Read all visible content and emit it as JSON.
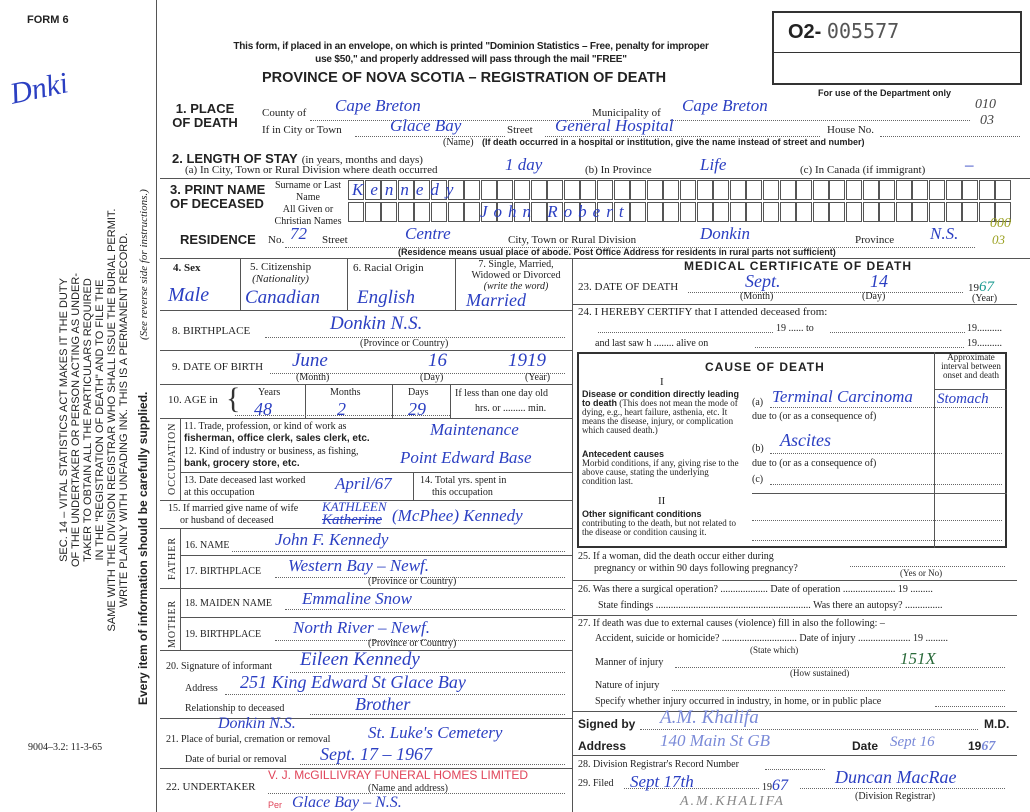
{
  "form_label": "FORM 6",
  "margin": {
    "handwritten_top": "Dnki",
    "statute_lines": [
      "SEC. 14 – VITAL STATISTICS ACT MAKES IT THE DUTY",
      "OF THE UNDERTAKER OR PERSON ACTING AS UNDER-",
      "TAKER TO OBTAIN ALL THE PARTICULARS REQUIRED",
      "IN THE \"REGISTRATION OF DEATH\" AND TO FILE THE",
      "SAME WITH THE DIVISION REGISTRAR WHO SHALL ISSUE THE BURIAL PERMIT.",
      "WRITE PLAINLY WITH UNFADING INK. THIS IS A PERMANENT RECORD."
    ],
    "reverse_note": "(See reverse side for instructions.)",
    "every_item": "Every item of information should be carefully supplied.",
    "form_code": "9004–3.2: 11-3-65"
  },
  "header": {
    "mail_notice_1": "This form, if placed in an envelope, on which is printed \"Dominion Statistics – Free, penalty for improper",
    "mail_notice_2": "use $50,\" and properly addressed will pass through the mail \"FREE\"",
    "title": "PROVINCE OF NOVA SCOTIA – REGISTRATION OF DEATH",
    "reg_prefix": "O2-",
    "reg_number": "005577",
    "dept_only": "For use of the Department only",
    "dept_code_1": "010",
    "dept_code_2": "03",
    "dept_code_3": "000",
    "dept_code_4": "03"
  },
  "place": {
    "label": "1. PLACE OF DEATH",
    "county_label": "County of",
    "county": "Cape Breton",
    "municipality_label": "Municipality of",
    "municipality": "Cape Breton",
    "city_label": "If in City or Town",
    "city": "Glace Bay",
    "name_hint": "(Name)",
    "street_label": "Street",
    "street": "General Hospital",
    "house_label": "House No.",
    "hospital_hint": "(If death occurred in a hospital or institution, give the name instead of street and number)"
  },
  "stay": {
    "label": "2. LENGTH OF STAY",
    "hint": "(in years, months and days)",
    "a_label": "(a) In City, Town or Rural Division where death occurred",
    "a": "1 day",
    "b_label": "(b) In Province",
    "b": "Life",
    "c_label": "(c) In Canada (if immigrant)",
    "c": "–"
  },
  "name": {
    "label": "3. PRINT NAME OF DECEASED",
    "surname_label": "Surname or Last Name",
    "surname": "Kennedy",
    "given_label": "All Given or Christian Names",
    "given": "John Robert"
  },
  "residence": {
    "label": "RESIDENCE",
    "no_label": "No.",
    "no": "72",
    "street_label": "Street",
    "street": "Centre",
    "city_label": "City, Town or Rural Division",
    "city": "Donkin",
    "province_label": "Province",
    "province": "N.S.",
    "hint": "(Residence means usual place of abode. Post Office Address for residents in rural parts not sufficient)"
  },
  "personal": {
    "sex_label": "4. Sex",
    "sex": "Male",
    "citizenship_label": "5. Citizenship",
    "citizenship_hint": "(Nationality)",
    "citizenship": "Canadian",
    "racial_label": "6. Racial Origin",
    "racial": "English",
    "marital_label": "7. Single, Married, Widowed or Divorced",
    "marital_hint": "(write the word)",
    "marital": "Married",
    "birthplace_label": "8. BIRTHPLACE",
    "birthplace": "Donkin N.S.",
    "prov_hint": "(Province or Country)",
    "dob_label": "9. DATE OF BIRTH",
    "dob_month": "June",
    "dob_day": "16",
    "dob_year": "1919",
    "month_hint": "(Month)",
    "day_hint": "(Day)",
    "year_hint": "(Year)",
    "age_label": "10. AGE in",
    "years_label": "Years",
    "years": "48",
    "months_label": "Months",
    "months": "2",
    "days_label": "Days",
    "days": "29",
    "less_label": "If less than one day old",
    "hrs_label": "hrs. or ......... min."
  },
  "occupation": {
    "side_label": "OCCUPATION",
    "trade_label_1": "11. Trade, profession, or kind of work as",
    "trade_label_2": "fisherman, office clerk, sales clerk, etc.",
    "trade": "Maintenance",
    "industry_label_1": "12. Kind of industry or business, as fishing,",
    "industry_label_2": "bank, grocery store, etc.",
    "industry": "Point Edward Base",
    "last_worked_label_1": "13. Date deceased last worked",
    "last_worked_label_2": "at this occupation",
    "last_worked": "April/67",
    "total_label_1": "14. Total yrs. spent in",
    "total_label_2": "this occupation"
  },
  "spouse": {
    "label_1": "15. If married give name of wife",
    "label_2": "or husband of deceased",
    "struck": "Katherine",
    "correction": "KATHLEEN",
    "value": "(McPhee) Kennedy"
  },
  "father": {
    "side_label": "FATHER",
    "name_label": "16. NAME",
    "name": "John F. Kennedy",
    "birthplace_label": "17. BIRTHPLACE",
    "birthplace": "Western Bay – Newf.",
    "hint": "(Province or Country)"
  },
  "mother": {
    "side_label": "MOTHER",
    "maiden_label": "18. MAIDEN NAME",
    "maiden": "Emmaline Snow",
    "birthplace_label": "19. BIRTHPLACE",
    "birthplace": "North River – Newf.",
    "hint": "(Province or Country)"
  },
  "informant": {
    "sig_label": "20. Signature of informant",
    "signature": "Eileen Kennedy",
    "address_label": "Address",
    "address": "251 King Edward St Glace Bay",
    "rel_label": "Relationship to deceased",
    "relationship": "Brother"
  },
  "burial": {
    "place_label": "21. Place of burial, cremation or removal",
    "place_1": "Donkin N.S.",
    "place_2": "St. Luke's Cemetery",
    "date_label": "Date of burial or removal",
    "date": "Sept. 17 – 1967"
  },
  "undertaker": {
    "label": "22. UNDERTAKER",
    "stamp": "V. J. McGILLIVRAY FUNERAL HOMES LIMITED",
    "stamp_2": "Per",
    "hint": "(Name and address)",
    "address": "Glace Bay – N.S."
  },
  "medical": {
    "title": "MEDICAL CERTIFICATE OF DEATH",
    "death_label": "23. DATE OF DEATH",
    "death_month": "Sept.",
    "death_day": "14",
    "death_year_prefix": "19",
    "death_year": "67",
    "certify": "24. I HEREBY CERTIFY that I attended deceased from:",
    "from_19": "19 ......  to",
    "to_19": "19..........",
    "last_saw": "and last saw h ........  alive on",
    "alive_19": "19..........",
    "cause_title": "CAUSE OF DEATH",
    "interval_label": "Approximate interval between onset and death",
    "part1": "I",
    "direct_title": "Disease or condition directly leading to death",
    "direct_text": "(This does not mean the mode of dying, e.g., heart failure, asthenia, etc. It means the disease, injury, or complication which caused death.)",
    "a_label": "(a)",
    "a": "Terminal Carcinoma",
    "a_interval": "Stomach",
    "due_to": "due to (or as a consequence of)",
    "antecedent_title": "Antecedent causes",
    "antecedent_text": "Morbid conditions, if any, giving rise to the above cause, stating the underlying condition last.",
    "b_label": "(b)",
    "b": "Ascites",
    "c_label": "(c)",
    "part2": "II",
    "other_title": "Other significant conditions",
    "other_text": "contributing to the death, but not related to the disease or condition causing it.",
    "q25_1": "25. If a woman, did the death occur either during",
    "q25_2": "pregnancy or within 90 days following pregnancy?",
    "yes_no": "(Yes or No)",
    "q26": "26. Was there a surgical operation? ...................  Date of operation ..................... 19 .........",
    "state_findings": "State findings ..............................................................  Was there an autopsy? ...............",
    "q27": "27. If death was due to external causes (violence) fill in also the following: –",
    "accident": "Accident, suicide or homicide? ..............................  Date of injury ..................... 19 .........",
    "state_which": "(State which)",
    "manner_label": "Manner of injury",
    "manner": "151X",
    "how": "(How sustained)",
    "nature_label": "Nature of injury",
    "specify": "Specify whether injury occurred in industry, in home, or in public place",
    "signed_label": "Signed by",
    "signature": "A.M. Khalifa",
    "md": "M.D.",
    "address_label": "Address",
    "address": "140 Main St GB",
    "date_label": "Date",
    "date": "Sept 16",
    "date_year_prefix": "19",
    "date_year": "67",
    "q28": "28. Division Registrar's Record Number",
    "q29": "29. Filed",
    "filed": "Sept 17th",
    "filed_year_prefix": "19",
    "filed_year": "67",
    "registrar": "Duncan MacRae",
    "registrar_hint": "(Division Registrar)",
    "print_name": "A.M.KHALIFA"
  },
  "colors": {
    "ink": "#2b3fc2",
    "stamp": "#e0455a",
    "print": "#222222"
  }
}
